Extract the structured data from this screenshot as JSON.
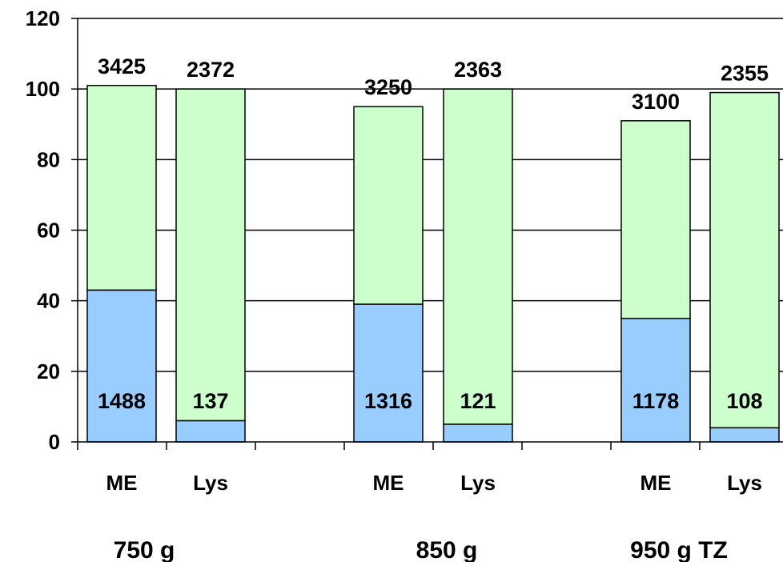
{
  "chart_data": {
    "type": "bar",
    "stacked": true,
    "y_ticks": [
      0,
      20,
      40,
      60,
      80,
      100,
      120
    ],
    "ylim": [
      0,
      120
    ],
    "grid": true,
    "groups": [
      {
        "label": "750 g",
        "bars": [
          {
            "category": "ME",
            "lower": 43,
            "total": 101,
            "lower_label": "1488",
            "top_label": "3425"
          },
          {
            "category": "Lys",
            "lower": 6,
            "total": 100,
            "lower_label": "137",
            "top_label": "2372"
          }
        ]
      },
      {
        "label": "850 g",
        "bars": [
          {
            "category": "ME",
            "lower": 39,
            "total": 95,
            "lower_label": "1316",
            "top_label": "3250"
          },
          {
            "category": "Lys",
            "lower": 5,
            "total": 100,
            "lower_label": "121",
            "top_label": "2363"
          }
        ]
      },
      {
        "label": "950 g TZ",
        "bars": [
          {
            "category": "ME",
            "lower": 35,
            "total": 91,
            "lower_label": "1178",
            "top_label": "3100"
          },
          {
            "category": "Lys",
            "lower": 4,
            "total": 99,
            "lower_label": "108",
            "top_label": "2355"
          }
        ]
      }
    ],
    "colors": {
      "lower_segment": "#99ccff",
      "upper_segment": "#ccffcc",
      "outline": "#000000",
      "grid": "#000000"
    }
  }
}
